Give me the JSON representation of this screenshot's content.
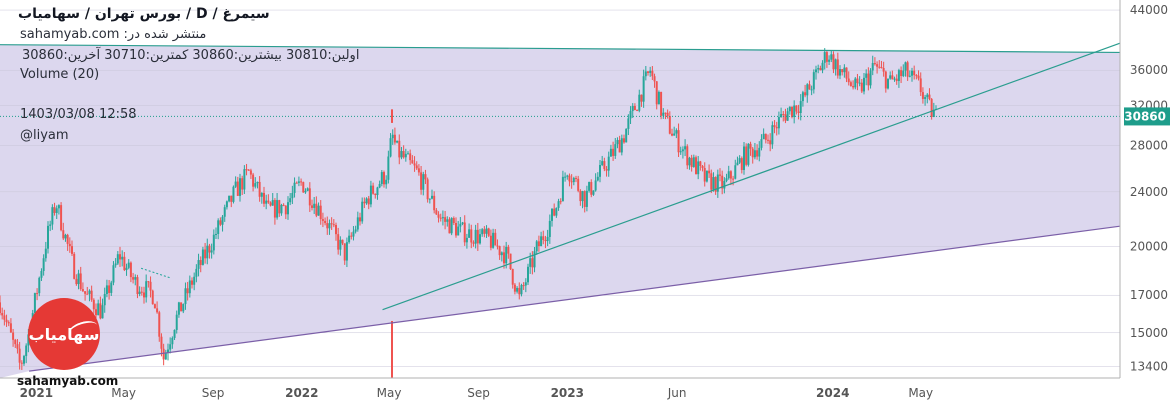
{
  "header": {
    "title": "سیمرغ / D / بورس تهران / سهامیاب",
    "published": "منتشر شده در: sahamyab.com",
    "ohlc": "اولین:30810 بیشترین:30860 کمترین:30710 آخرین:30860",
    "volume": "Volume (20)",
    "datetime": "1403/03/08 12:58",
    "user": "@liyam"
  },
  "branding": {
    "site": "sahamyab.com",
    "logo_text": "سهامیاب",
    "logo_icon": "sahamyab-logo-icon"
  },
  "colors": {
    "background": "#ffffff",
    "channel_fill": "#d8d3ec",
    "bull_candle": "#26a69a",
    "bear_candle": "#ef5350",
    "trendline": "#2a9d8f",
    "channel_lower": "#7b5fa8",
    "price_label_bg": "#1e9d8b",
    "axis_text": "#555555"
  },
  "chart_data": {
    "type": "candlestick",
    "title": "",
    "y_scale": "log",
    "ylim": [
      12900,
      45500
    ],
    "y_ticks": [
      13400,
      15000,
      17000,
      20000,
      24000,
      28000,
      32000,
      36000,
      44000
    ],
    "last_price": 30860,
    "x_ticks": [
      {
        "label": "2021",
        "date": "2021-01-01"
      },
      {
        "label": "May",
        "date": "2021-05-01"
      },
      {
        "label": "Sep",
        "date": "2021-09-01"
      },
      {
        "label": "2022",
        "date": "2022-01-01"
      },
      {
        "label": "May",
        "date": "2022-05-01"
      },
      {
        "label": "Sep",
        "date": "2022-09-01"
      },
      {
        "label": "2023",
        "date": "2023-01-01"
      },
      {
        "label": "Jun",
        "date": "2023-06-01"
      },
      {
        "label": "2024",
        "date": "2024-01-01"
      },
      {
        "label": "May",
        "date": "2024-05-01"
      }
    ],
    "xlim": [
      "2020-11-12",
      "2025-01-30"
    ],
    "price_path": [
      [
        "2020-11-12",
        16600
      ],
      [
        "2020-12-10",
        13400
      ],
      [
        "2020-12-22",
        15000
      ],
      [
        "2021-01-15",
        20500
      ],
      [
        "2021-01-28",
        23200
      ],
      [
        "2021-02-20",
        18800
      ],
      [
        "2021-03-10",
        17000
      ],
      [
        "2021-04-01",
        16100
      ],
      [
        "2021-04-25",
        19500
      ],
      [
        "2021-05-15",
        17800
      ],
      [
        "2021-06-12",
        17000
      ],
      [
        "2021-06-25",
        13800
      ],
      [
        "2021-07-10",
        15500
      ],
      [
        "2021-08-05",
        18000
      ],
      [
        "2021-09-01",
        20500
      ],
      [
        "2021-10-01",
        24000
      ],
      [
        "2021-10-20",
        25600
      ],
      [
        "2021-11-15",
        22500
      ],
      [
        "2021-12-10",
        23000
      ],
      [
        "2022-01-01",
        24800
      ],
      [
        "2022-02-01",
        22000
      ],
      [
        "2022-03-01",
        19500
      ],
      [
        "2022-04-01",
        23500
      ],
      [
        "2022-04-28",
        25600
      ],
      [
        "2022-05-05",
        29000
      ],
      [
        "2022-05-12",
        27500
      ],
      [
        "2022-06-10",
        25500
      ],
      [
        "2022-07-10",
        22000
      ],
      [
        "2022-08-10",
        21000
      ],
      [
        "2022-09-15",
        20500
      ],
      [
        "2022-10-10",
        19400
      ],
      [
        "2022-10-27",
        16800
      ],
      [
        "2022-11-20",
        19800
      ],
      [
        "2022-12-15",
        22500
      ],
      [
        "2023-01-01",
        26000
      ],
      [
        "2023-01-25",
        23500
      ],
      [
        "2023-02-20",
        26000
      ],
      [
        "2023-03-20",
        29000
      ],
      [
        "2023-04-10",
        33000
      ],
      [
        "2023-04-25",
        36000
      ],
      [
        "2023-05-12",
        31000
      ],
      [
        "2023-06-10",
        27500
      ],
      [
        "2023-07-10",
        25000
      ],
      [
        "2023-08-05",
        24500
      ],
      [
        "2023-09-01",
        27000
      ],
      [
        "2023-10-01",
        28500
      ],
      [
        "2023-10-25",
        31000
      ],
      [
        "2023-11-20",
        32500
      ],
      [
        "2023-12-10",
        35500
      ],
      [
        "2023-12-25",
        38200
      ],
      [
        "2024-01-10",
        36000
      ],
      [
        "2024-02-05",
        33500
      ],
      [
        "2024-02-28",
        36500
      ],
      [
        "2024-03-20",
        34500
      ],
      [
        "2024-04-10",
        35800
      ],
      [
        "2024-04-30",
        34000
      ],
      [
        "2024-05-12",
        31800
      ],
      [
        "2024-05-22",
        30860
      ]
    ],
    "early_line": [
      [
        "2021-05-25",
        18600
      ],
      [
        "2021-07-05",
        18000
      ]
    ],
    "spikes": [
      {
        "date": "2022-05-05",
        "high": 31600,
        "low": 30200
      },
      {
        "date": "2022-05-05",
        "high": 15600,
        "low": 12900
      }
    ],
    "drawings": {
      "channel_upper": [
        [
          "2020-11-12",
          39200
        ],
        [
          "2025-01-30",
          38200
        ]
      ],
      "channel_lower": [
        [
          "2020-12-22",
          13200
        ],
        [
          "2025-01-30",
          21400
        ]
      ],
      "trendline": [
        [
          "2022-04-22",
          16200
        ],
        [
          "2025-01-30",
          39400
        ]
      ]
    }
  }
}
